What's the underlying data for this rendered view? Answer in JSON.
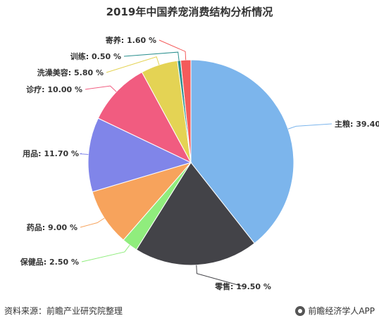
{
  "chart_data": {
    "type": "pie",
    "title": "2019年中国养宠消费结构分析情况",
    "value_suffix": " %",
    "categories": [
      "主粮",
      "零售",
      "保健品",
      "药品",
      "用品",
      "诊疗",
      "洗澡美容",
      "训练",
      "寄养"
    ],
    "values": [
      39.4,
      19.5,
      2.5,
      9.0,
      11.7,
      10.0,
      5.8,
      0.5,
      1.6
    ],
    "display_values": [
      "39.40",
      "19.50",
      "2.50",
      "9.00",
      "11.70",
      "10.00",
      "5.80",
      "0.50",
      "1.60"
    ],
    "colors": [
      "#7cb5ec",
      "#434348",
      "#90ed7d",
      "#f7a35c",
      "#8085e9",
      "#f15c80",
      "#e4d354",
      "#2b908f",
      "#f45b5b"
    ]
  },
  "footer": {
    "source": "资料来源：前瞻产业研究院整理",
    "brand": "前瞻经济学人APP"
  }
}
